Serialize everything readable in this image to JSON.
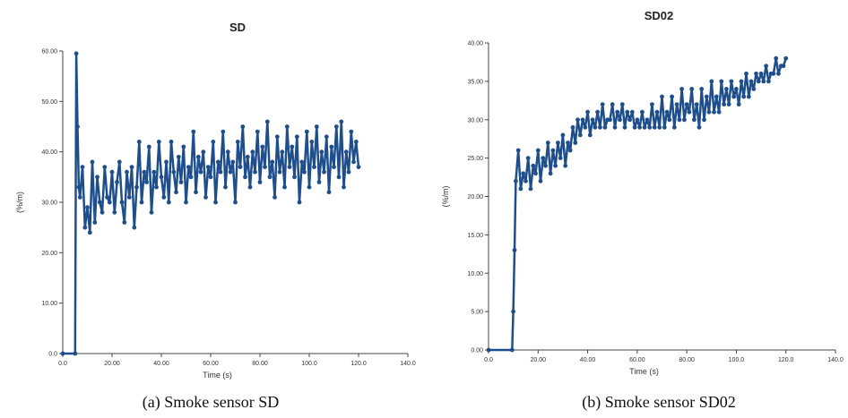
{
  "chart_data": [
    {
      "type": "line",
      "title": "SD",
      "xlabel": "Time (s)",
      "ylabel": "(%/m)",
      "caption": "(a) Smoke sensor SD",
      "xlim": [
        0,
        140
      ],
      "ylim": [
        0,
        60
      ],
      "xticks": [
        "0.0",
        "20.00",
        "40.00",
        "60.00",
        "80.00",
        "100.0",
        "120.0",
        "140.0"
      ],
      "yticks": [
        "0.0",
        "10.00",
        "20.00",
        "30.00",
        "40.00",
        "50.00",
        "60.00"
      ],
      "grid": false,
      "color": "#1f4e8c",
      "series": [
        {
          "x": [
            0,
            5.0,
            5.5,
            6,
            6.5,
            7,
            8,
            9,
            10,
            11,
            12,
            13,
            14,
            15,
            16,
            17,
            18,
            19,
            20,
            21,
            22,
            23,
            24,
            25,
            26,
            27,
            28,
            29,
            30,
            31,
            32,
            33,
            34,
            35,
            36,
            37,
            38,
            39,
            40,
            41,
            42,
            43,
            44,
            45,
            46,
            47,
            48,
            49,
            50,
            51,
            52,
            53,
            54,
            55,
            56,
            57,
            58,
            59,
            60,
            61,
            62,
            63,
            64,
            65,
            66,
            67,
            68,
            69,
            70,
            71,
            72,
            73,
            74,
            75,
            76,
            77,
            78,
            79,
            80,
            81,
            82,
            83,
            84,
            85,
            86,
            87,
            88,
            89,
            90,
            91,
            92,
            93,
            94,
            95,
            96,
            97,
            98,
            99,
            100,
            101,
            102,
            103,
            104,
            105,
            106,
            107,
            108,
            109,
            110,
            111,
            112,
            113,
            114,
            115,
            116,
            117,
            118,
            119,
            120
          ],
          "y": [
            0,
            0,
            59.5,
            45,
            33,
            31,
            37,
            25,
            29,
            24,
            38,
            26,
            35,
            30,
            28,
            37,
            31,
            30,
            36,
            28,
            34,
            38,
            30,
            26,
            36,
            31,
            37,
            25,
            33,
            42,
            30,
            36,
            34,
            41,
            28,
            36,
            33,
            42,
            35,
            31,
            38,
            30,
            42,
            36,
            32,
            39,
            34,
            41,
            30,
            37,
            35,
            44,
            32,
            39,
            36,
            40,
            31,
            37,
            35,
            42,
            30,
            38,
            36,
            44,
            33,
            40,
            36,
            38,
            30,
            42,
            37,
            45,
            35,
            39,
            33,
            40,
            36,
            44,
            34,
            41,
            37,
            46,
            35,
            38,
            31,
            43,
            36,
            40,
            33,
            45,
            37,
            41,
            35,
            43,
            30,
            38,
            36,
            44,
            33,
            42,
            37,
            45,
            34,
            40,
            36,
            43,
            32,
            41,
            37,
            45,
            35,
            46,
            33,
            40,
            36,
            44,
            38,
            42,
            37
          ]
        }
      ]
    },
    {
      "type": "line",
      "title": "SD02",
      "xlabel": "Time (s)",
      "ylabel": "(%/m)",
      "caption": "(b) Smoke sensor SD02",
      "xlim": [
        0,
        140
      ],
      "ylim": [
        0,
        40
      ],
      "xticks": [
        "0.0",
        "20.00",
        "40.00",
        "60.00",
        "80.00",
        "100.0",
        "120.0",
        "140.0"
      ],
      "yticks": [
        "0.00",
        "5.00",
        "10.00",
        "15.00",
        "20.00",
        "25.00",
        "30.00",
        "35.00",
        "40.00"
      ],
      "grid": false,
      "color": "#1f4e8c",
      "series": [
        {
          "x": [
            0,
            9.5,
            10,
            10.5,
            11,
            12,
            13,
            14,
            15,
            16,
            17,
            18,
            19,
            20,
            21,
            22,
            23,
            24,
            25,
            26,
            27,
            28,
            29,
            30,
            31,
            32,
            33,
            34,
            35,
            36,
            37,
            38,
            39,
            40,
            41,
            42,
            43,
            44,
            45,
            46,
            47,
            48,
            49,
            50,
            51,
            52,
            53,
            54,
            55,
            56,
            57,
            58,
            59,
            60,
            61,
            62,
            63,
            64,
            65,
            66,
            67,
            68,
            69,
            70,
            71,
            72,
            73,
            74,
            75,
            76,
            77,
            78,
            79,
            80,
            81,
            82,
            83,
            84,
            85,
            86,
            87,
            88,
            89,
            90,
            91,
            92,
            93,
            94,
            95,
            96,
            97,
            98,
            99,
            100,
            101,
            102,
            103,
            104,
            105,
            106,
            107,
            108,
            109,
            110,
            111,
            112,
            113,
            114,
            115,
            116,
            117,
            118,
            119,
            120
          ],
          "y": [
            0,
            0,
            5,
            13,
            22,
            26,
            21,
            23,
            22,
            25,
            21,
            24,
            23,
            26,
            22,
            25,
            24,
            27,
            23,
            26,
            24,
            27,
            25,
            28,
            24,
            27,
            26,
            29,
            27,
            30,
            28,
            30,
            29,
            31,
            28,
            30,
            29,
            31,
            29,
            32,
            29,
            30,
            30,
            32,
            29,
            31,
            30,
            32,
            29,
            31,
            30,
            31,
            29,
            30,
            29,
            31,
            29,
            30,
            29,
            32,
            29,
            31,
            29,
            33,
            29,
            31,
            30,
            33,
            29,
            32,
            30,
            34,
            30,
            32,
            31,
            34,
            30,
            32,
            29,
            34,
            30,
            33,
            31,
            35,
            31,
            33,
            31,
            35,
            32,
            34,
            32,
            35,
            33,
            34,
            32,
            35,
            33,
            36,
            33,
            35,
            34,
            36,
            35,
            36,
            35,
            37,
            35,
            36,
            36,
            38,
            36,
            37,
            37,
            38
          ]
        }
      ]
    }
  ]
}
